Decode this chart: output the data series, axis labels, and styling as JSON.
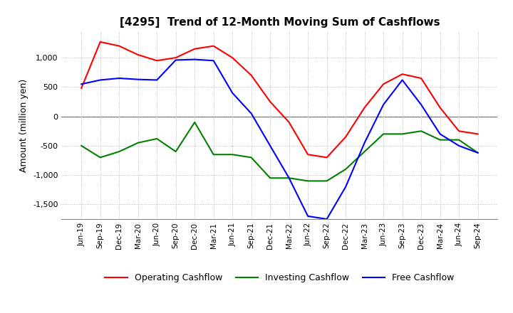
{
  "title": "[4295]  Trend of 12-Month Moving Sum of Cashflows",
  "ylabel": "Amount (million yen)",
  "ylim": [
    -1750,
    1450
  ],
  "yticks": [
    -1500,
    -1000,
    -500,
    0,
    500,
    1000
  ],
  "background_color": "#ffffff",
  "grid_color": "#aaaaaa",
  "x_labels": [
    "Jun-19",
    "Sep-19",
    "Dec-19",
    "Mar-20",
    "Jun-20",
    "Sep-20",
    "Dec-20",
    "Mar-21",
    "Jun-21",
    "Sep-21",
    "Dec-21",
    "Mar-22",
    "Jun-22",
    "Sep-22",
    "Dec-22",
    "Mar-23",
    "Jun-23",
    "Sep-23",
    "Dec-23",
    "Mar-24",
    "Jun-24",
    "Sep-24"
  ],
  "operating": [
    480,
    1270,
    1200,
    1050,
    950,
    1000,
    1150,
    1200,
    1000,
    700,
    250,
    -100,
    -650,
    -700,
    -350,
    150,
    550,
    720,
    650,
    150,
    -250,
    -300
  ],
  "investing": [
    -500,
    -700,
    -600,
    -450,
    -380,
    -600,
    -100,
    -650,
    -650,
    -700,
    -1050,
    -1050,
    -1100,
    -1100,
    -900,
    -600,
    -300,
    -300,
    -250,
    -400,
    -400,
    -620
  ],
  "free": [
    550,
    620,
    650,
    630,
    620,
    960,
    970,
    950,
    400,
    50,
    -500,
    -1050,
    -1700,
    -1750,
    -1200,
    -450,
    200,
    620,
    200,
    -300,
    -500,
    -620
  ],
  "operating_color": "#ff0000",
  "investing_color": "#008000",
  "free_color": "#0000ff",
  "legend_labels": [
    "Operating Cashflow",
    "Investing Cashflow",
    "Free Cashflow"
  ]
}
